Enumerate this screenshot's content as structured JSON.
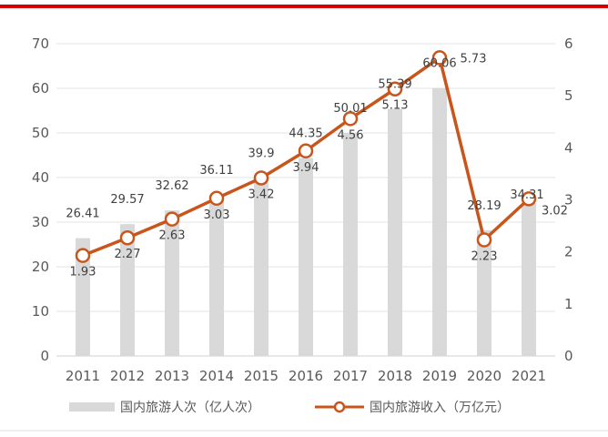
{
  "chart_data": {
    "type": "bar+line",
    "categories": [
      "2011",
      "2012",
      "2013",
      "2014",
      "2015",
      "2016",
      "2017",
      "2018",
      "2019",
      "2020",
      "2021"
    ],
    "series": [
      {
        "name": "国内旅游人次（亿人次）",
        "type": "bar",
        "axis": "left",
        "color": "#d9d9d9",
        "values": [
          26.41,
          29.57,
          32.62,
          36.11,
          39.9,
          44.35,
          50.01,
          55.39,
          60.06,
          28.19,
          34.31
        ]
      },
      {
        "name": "国内旅游收入（万亿元）",
        "type": "line",
        "axis": "right",
        "color": "#c8561c",
        "values": [
          1.93,
          2.27,
          2.63,
          3.03,
          3.42,
          3.94,
          4.56,
          5.13,
          5.73,
          2.23,
          3.02
        ]
      }
    ],
    "left_axis": {
      "range": [
        0,
        70
      ],
      "ticks": [
        "0",
        "10",
        "20",
        "30",
        "40",
        "50",
        "60",
        "70"
      ]
    },
    "right_axis": {
      "range": [
        0,
        6
      ],
      "ticks": [
        "0",
        "1",
        "2",
        "3",
        "4",
        "5",
        "6"
      ]
    },
    "grid": true,
    "legend": "bottom"
  }
}
